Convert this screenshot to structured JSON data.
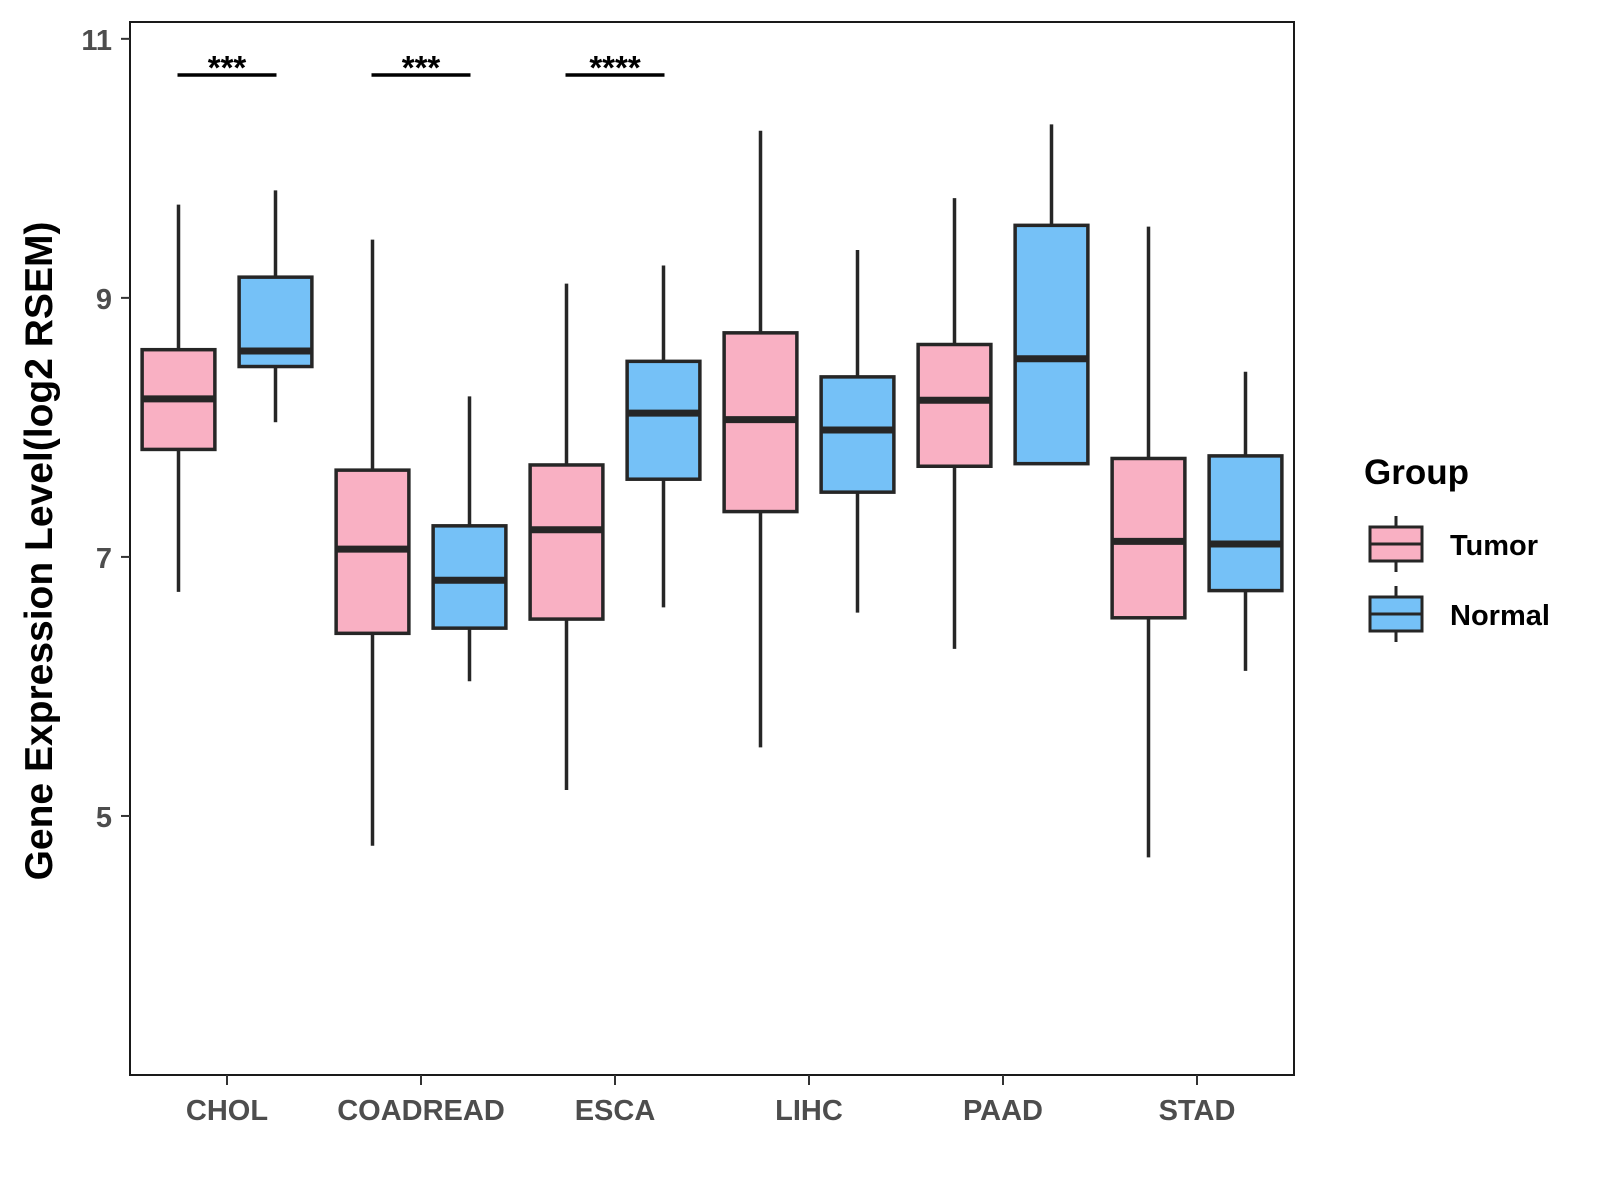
{
  "chart_data": {
    "type": "boxplot",
    "title": "",
    "xlabel": "",
    "ylabel": "Gene Expression Level(log2 RSEM)",
    "ylim": [
      3.0,
      11.13
    ],
    "yticks": [
      5,
      7,
      9,
      11
    ],
    "ytick_labels": [
      "5",
      "7",
      "9",
      "11"
    ],
    "grid": false,
    "legend": {
      "title": "Group",
      "position": "right"
    },
    "categories": [
      "CHOL",
      "COADREAD",
      "ESCA",
      "LIHC",
      "PAAD",
      "STAD"
    ],
    "series": [
      {
        "name": "Tumor",
        "color": "#F9B0C3",
        "boxes": [
          {
            "min": 6.73,
            "q1": 7.83,
            "median": 8.22,
            "q3": 8.6,
            "max": 9.72
          },
          {
            "min": 4.77,
            "q1": 6.41,
            "median": 7.06,
            "q3": 7.67,
            "max": 9.45
          },
          {
            "min": 5.2,
            "q1": 6.52,
            "median": 7.21,
            "q3": 7.71,
            "max": 9.11
          },
          {
            "min": 5.53,
            "q1": 7.35,
            "median": 8.06,
            "q3": 8.73,
            "max": 10.29
          },
          {
            "min": 6.29,
            "q1": 7.7,
            "median": 8.21,
            "q3": 8.64,
            "max": 9.77
          },
          {
            "min": 4.68,
            "q1": 6.53,
            "median": 7.12,
            "q3": 7.76,
            "max": 9.55
          }
        ]
      },
      {
        "name": "Normal",
        "color": "#75C1F7",
        "boxes": [
          {
            "min": 8.04,
            "q1": 8.47,
            "median": 8.59,
            "q3": 9.16,
            "max": 9.83
          },
          {
            "min": 6.04,
            "q1": 6.45,
            "median": 6.82,
            "q3": 7.24,
            "max": 8.24
          },
          {
            "min": 6.61,
            "q1": 7.6,
            "median": 8.11,
            "q3": 8.51,
            "max": 9.25
          },
          {
            "min": 6.57,
            "q1": 7.5,
            "median": 7.98,
            "q3": 8.39,
            "max": 9.37
          },
          {
            "min": 7.72,
            "q1": 7.72,
            "median": 8.53,
            "q3": 9.56,
            "max": 10.34
          },
          {
            "min": 6.12,
            "q1": 6.74,
            "median": 7.1,
            "q3": 7.78,
            "max": 8.43
          }
        ]
      }
    ],
    "annotations": [
      {
        "category": "CHOL",
        "text": "***"
      },
      {
        "category": "COADREAD",
        "text": "***"
      },
      {
        "category": "ESCA",
        "text": "****"
      }
    ]
  }
}
